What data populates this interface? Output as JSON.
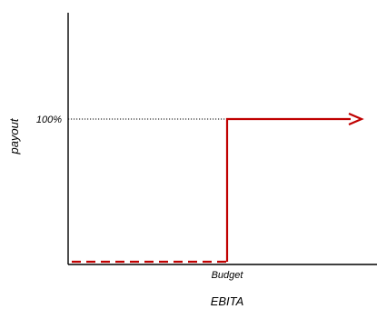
{
  "chart_data": {
    "type": "line",
    "ylabel": "payout",
    "xlabel": "EBITA",
    "x_tick_label": "Budget",
    "y_tick_label": "100%",
    "series": [
      {
        "color": "#c00000",
        "segments": [
          {
            "style": "dashed",
            "x": [
              0,
              1
            ],
            "y": [
              0,
              0
            ]
          },
          {
            "style": "solid",
            "x": [
              1,
              1,
              2
            ],
            "y": [
              0,
              1,
              1
            ]
          }
        ],
        "end_arrow": true
      }
    ],
    "x_ticks": [
      1
    ],
    "y_ticks": [
      1
    ],
    "xlim": [
      0,
      2
    ],
    "ylim": [
      0,
      1.45
    ]
  }
}
